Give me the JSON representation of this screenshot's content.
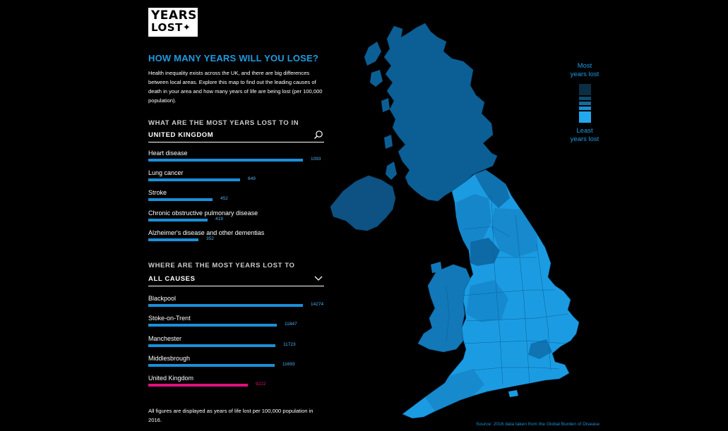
{
  "logo": {
    "line1": "YEARS",
    "line2": "LOST",
    "star": "✦"
  },
  "headline": "HOW MANY YEARS WILL YOU LOSE?",
  "intro": "Health inequality exists across the UK, and there are big differences between local areas. Explore this map to find out the leading causes of death in your area and how many years of life are being lost (per 100,000 population).",
  "section1": {
    "title": "WHAT ARE THE MOST YEARS LOST TO IN",
    "selected": "UNITED KINGDOM",
    "icon": "search-icon",
    "items": [
      {
        "label": "Heart disease",
        "value": "1093",
        "fraction": 1.0
      },
      {
        "label": "Lung cancer",
        "value": "649",
        "fraction": 0.594
      },
      {
        "label": "Stroke",
        "value": "452",
        "fraction": 0.414
      },
      {
        "label": "Chronic obstructive pulmonary disease",
        "value": "419",
        "fraction": 0.383
      },
      {
        "label": "Alzheimer's disease and other dementias",
        "value": "352",
        "fraction": 0.322
      }
    ]
  },
  "section2": {
    "title": "WHERE ARE THE MOST YEARS LOST TO",
    "selected": "ALL CAUSES",
    "icon": "chevron-down-icon",
    "items": [
      {
        "label": "Blackpool",
        "value": "14274",
        "fraction": 1.0,
        "highlight": false
      },
      {
        "label": "Stoke-on-Trent",
        "value": "11847",
        "fraction": 0.83,
        "highlight": false
      },
      {
        "label": "Manchester",
        "value": "11723",
        "fraction": 0.821,
        "highlight": false
      },
      {
        "label": "Middlesbrough",
        "value": "11693",
        "fraction": 0.819,
        "highlight": false
      },
      {
        "label": "United Kingdom",
        "value": "9222",
        "fraction": 0.646,
        "highlight": true
      }
    ]
  },
  "footnote": "All figures are displayed as years of life lost per 100,000 population in 2016.",
  "legend": {
    "top": "Most\nyears lost",
    "bottom": "Least\nyears lost",
    "colors": [
      "#0b2e44",
      "#0e4b6f",
      "#136c9c",
      "#1a8fd0",
      "#22a8ee"
    ]
  },
  "source": "Source: 2016 data taken from the Global Burden of Disease",
  "colors": {
    "accent": "#1e9be0",
    "highlight": "#e0107a",
    "scotland": "#0c5f95",
    "northern_ireland": "#0d5283",
    "wales": "#1278b8",
    "england_light": "#1b9ce2",
    "england_mid": "#1684c8",
    "england_dark": "#0e6aa6"
  }
}
